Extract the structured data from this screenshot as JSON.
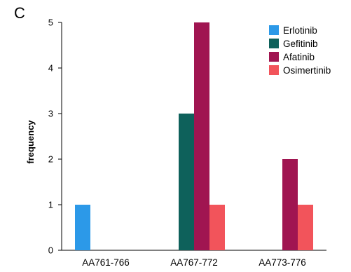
{
  "panel_label": "C",
  "chart_data": {
    "type": "bar",
    "title": "",
    "xlabel": "",
    "ylabel": "frequency",
    "ylim": [
      0,
      5
    ],
    "yticks": [
      0,
      1,
      2,
      3,
      4,
      5
    ],
    "categories": [
      "AA761-766",
      "AA767-772",
      "AA773-776"
    ],
    "series": [
      {
        "name": "Erlotinib",
        "color": "#2C99E8",
        "values": [
          1,
          0,
          0
        ]
      },
      {
        "name": "Gefitinib",
        "color": "#0E615B",
        "values": [
          0,
          3,
          0
        ]
      },
      {
        "name": "Afatinib",
        "color": "#A01551",
        "values": [
          0,
          5,
          2
        ]
      },
      {
        "name": "Osimertinib",
        "color": "#F2545B",
        "values": [
          0,
          1,
          1
        ]
      }
    ],
    "grid": false,
    "legend_position": "top-right"
  }
}
